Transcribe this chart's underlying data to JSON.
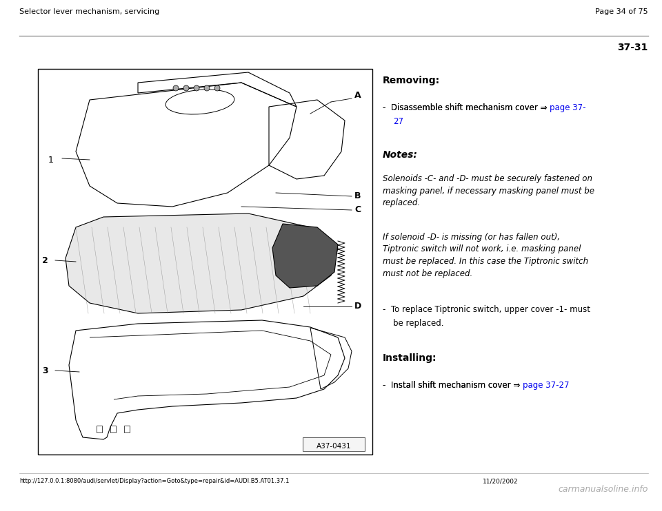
{
  "bg_color": "#ffffff",
  "header_left": "Selector lever mechanism, servicing",
  "header_right": "Page 34 of 75",
  "page_id": "37-31",
  "removing_title": "Removing:",
  "notes_title": "Notes:",
  "notes_text1": "Solenoids -C- and -D- must be securely fastened on\nmasking panel, if necessary masking panel must be\nreplaced.",
  "notes_text2": "If solenoid -D- is missing (or has fallen out),\nTiptronic switch will not work, i.e. masking panel\nmust be replaced. In this case the Tiptronic switch\nmust not be replaced.",
  "bullet2_line1": "-  To replace Tiptronic switch, upper cover -1- must",
  "bullet2_line2": "    be replaced.",
  "installing_title": "Installing:",
  "footer_left": "http://127.0.0.1:8080/audi/servlet/Display?action=Goto&type=repair&id=AUDI.B5.AT01.37.1",
  "footer_right_1": "11/20/2002",
  "footer_watermark": "carmanualsoline.info",
  "diagram_label": "A37-0431",
  "link_color": "#0000ee",
  "text_color": "#000000",
  "gray_color": "#aaaaaa",
  "line_color": "#999999"
}
